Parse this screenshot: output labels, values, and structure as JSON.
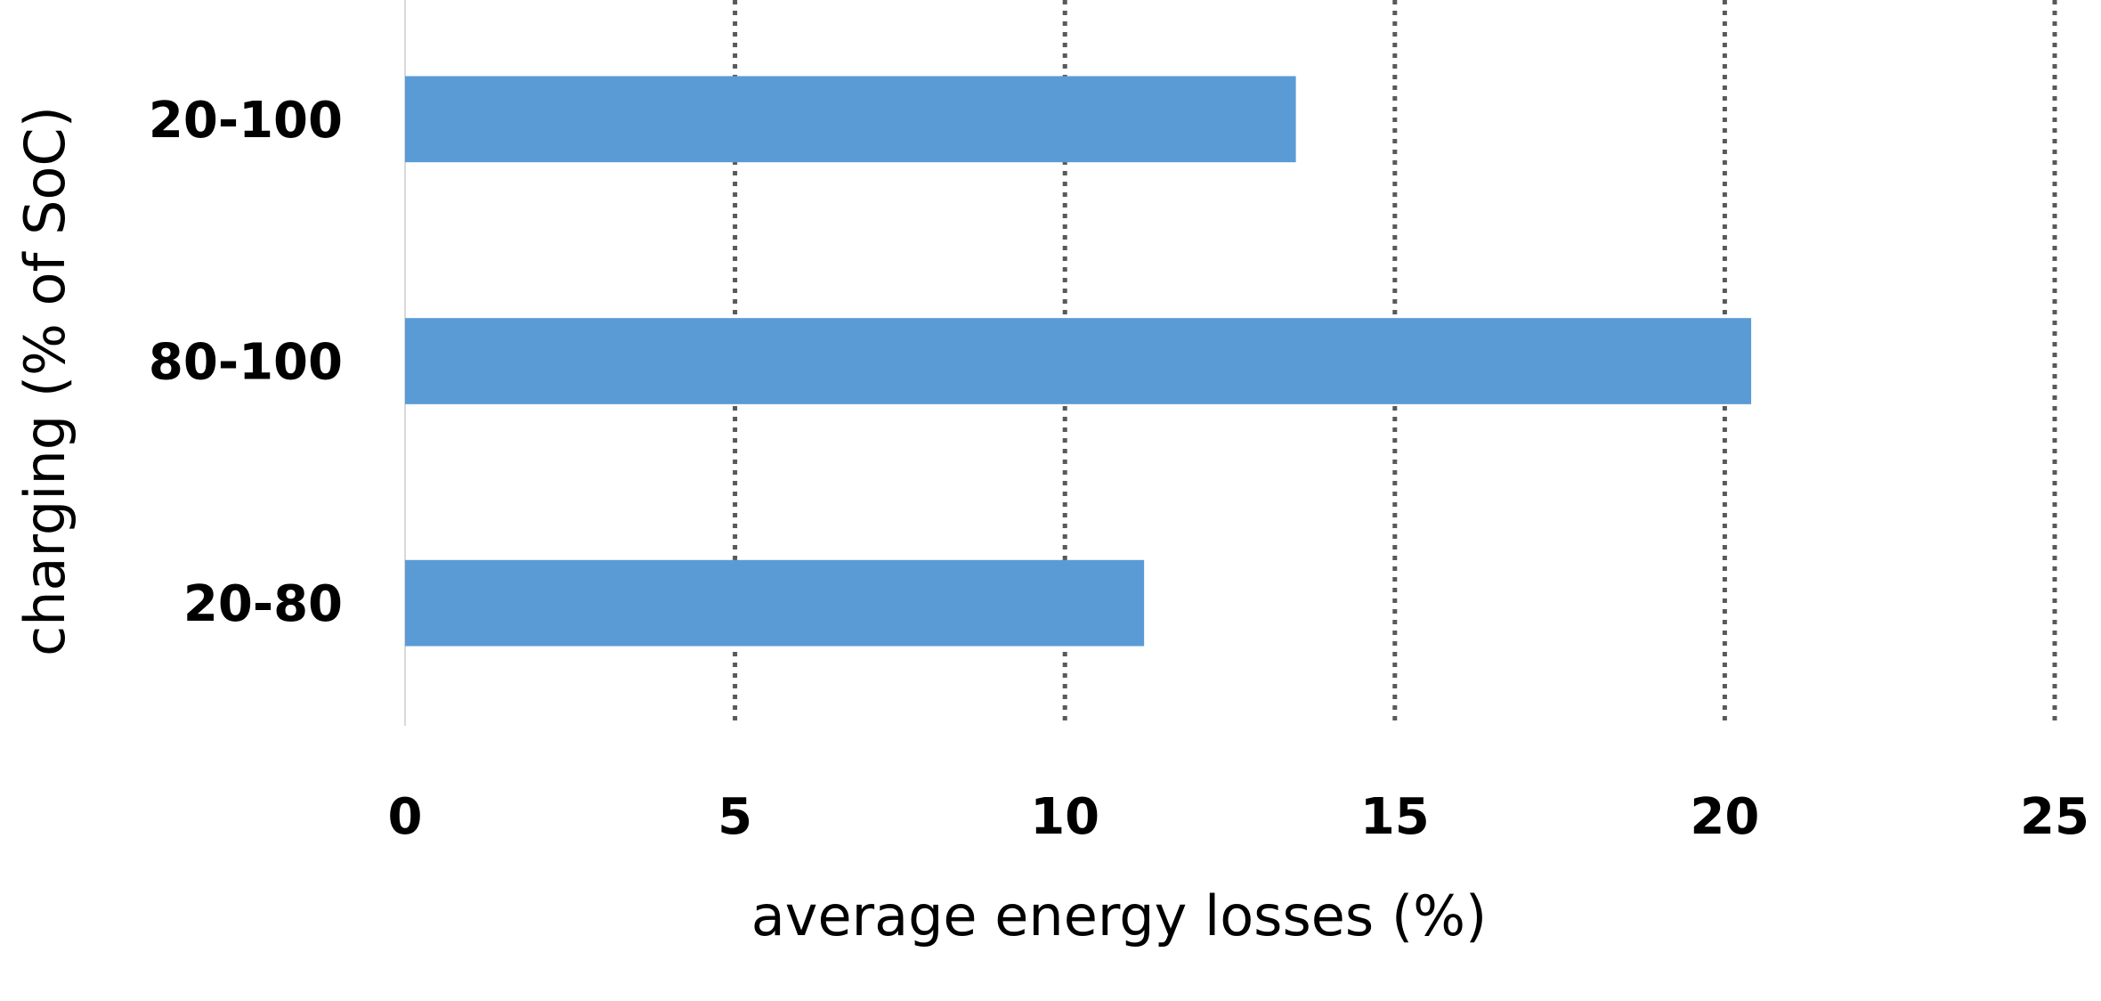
{
  "chart_data": {
    "type": "bar",
    "orientation": "horizontal",
    "title": "",
    "xlabel": "average energy losses (%)",
    "ylabel": "charging (% of SoC)",
    "categories": [
      "20-100",
      "80-100",
      "20-80"
    ],
    "values": [
      13.5,
      20.4,
      11.2
    ],
    "xlim": [
      0,
      25
    ],
    "xticks": [
      "0",
      "5",
      "10",
      "15",
      "20",
      "25"
    ],
    "grid": "vertical-dotted",
    "legend": "none",
    "bar_color": "#5B9BD5"
  }
}
